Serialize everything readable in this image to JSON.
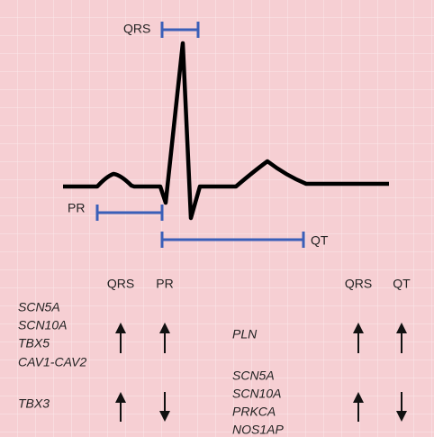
{
  "ecg": {
    "qrs_label": "QRS",
    "pr_label": "PR",
    "qt_label": "QT"
  },
  "table": {
    "left": {
      "headers": [
        "QRS",
        "PR"
      ],
      "rows": [
        {
          "genes": [
            "SCN5A",
            "SCN10A",
            "TBX5",
            "CAV1-CAV2"
          ]
        },
        {
          "genes": [
            "TBX3"
          ]
        }
      ]
    },
    "right": {
      "headers": [
        "QRS",
        "QT"
      ],
      "rows": [
        {
          "genes": [
            "PLN"
          ]
        },
        {
          "genes": [
            "SCN5A",
            "SCN10A",
            "PRKCA",
            "NOS1AP"
          ]
        }
      ]
    }
  }
}
